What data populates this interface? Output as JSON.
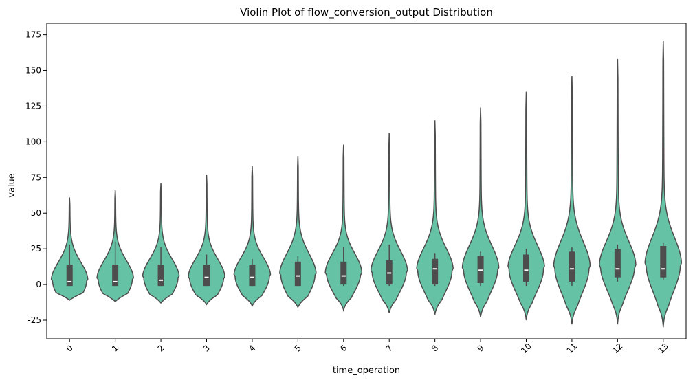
{
  "chart_data": {
    "type": "violin",
    "title": "Violin Plot of flow_conversion_output Distribution",
    "xlabel": "time_operation",
    "ylabel": "value",
    "ylim": [
      -38,
      183
    ],
    "yticks": [
      -25,
      0,
      25,
      50,
      75,
      100,
      125,
      150,
      175
    ],
    "categories": [
      "0",
      "1",
      "2",
      "3",
      "4",
      "5",
      "6",
      "7",
      "8",
      "9",
      "10",
      "11",
      "12",
      "13"
    ],
    "violin_color": "#66c2a5",
    "edge_color": "#4d4d4d",
    "grid": false,
    "series": [
      {
        "category": "0",
        "min": -11,
        "max": 61,
        "q1": -1,
        "median": 2,
        "q3": 14,
        "whisker_low": -1,
        "whisker_high": 28,
        "mode": 3
      },
      {
        "category": "1",
        "min": -12,
        "max": 66,
        "q1": -1,
        "median": 2,
        "q3": 14,
        "whisker_low": -1,
        "whisker_high": 30,
        "mode": 4
      },
      {
        "category": "2",
        "min": -13,
        "max": 71,
        "q1": -1,
        "median": 3,
        "q3": 14,
        "whisker_low": -1,
        "whisker_high": 26,
        "mode": 5
      },
      {
        "category": "3",
        "min": -14,
        "max": 77,
        "q1": -1,
        "median": 5,
        "q3": 14,
        "whisker_low": -1,
        "whisker_high": 21,
        "mode": 5
      },
      {
        "category": "4",
        "min": -15,
        "max": 83,
        "q1": -1,
        "median": 5,
        "q3": 14,
        "whisker_low": -1,
        "whisker_high": 18,
        "mode": 6
      },
      {
        "category": "5",
        "min": -16,
        "max": 90,
        "q1": -1,
        "median": 6,
        "q3": 16,
        "whisker_low": -1,
        "whisker_high": 20,
        "mode": 7
      },
      {
        "category": "6",
        "min": -18,
        "max": 98,
        "q1": 0,
        "median": 6,
        "q3": 16,
        "whisker_low": -1,
        "whisker_high": 26,
        "mode": 8
      },
      {
        "category": "7",
        "min": -20,
        "max": 106,
        "q1": 0,
        "median": 8,
        "q3": 17,
        "whisker_low": -1,
        "whisker_high": 28,
        "mode": 9
      },
      {
        "category": "8",
        "min": -21,
        "max": 115,
        "q1": 0,
        "median": 11,
        "q3": 18,
        "whisker_low": -1,
        "whisker_high": 22,
        "mode": 10
      },
      {
        "category": "9",
        "min": -23,
        "max": 124,
        "q1": 1,
        "median": 10,
        "q3": 20,
        "whisker_low": -1,
        "whisker_high": 23,
        "mode": 11
      },
      {
        "category": "10",
        "min": -25,
        "max": 135,
        "q1": 2,
        "median": 10,
        "q3": 21,
        "whisker_low": -1,
        "whisker_high": 25,
        "mode": 11
      },
      {
        "category": "11",
        "min": -28,
        "max": 146,
        "q1": 2,
        "median": 11,
        "q3": 23,
        "whisker_low": -1,
        "whisker_high": 26,
        "mode": 12
      },
      {
        "category": "12",
        "min": -28,
        "max": 158,
        "q1": 5,
        "median": 11,
        "q3": 25,
        "whisker_low": 2,
        "whisker_high": 28,
        "mode": 13
      },
      {
        "category": "13",
        "min": -30,
        "max": 171,
        "q1": 5,
        "median": 11,
        "q3": 27,
        "whisker_low": 3,
        "whisker_high": 29,
        "mode": 14
      }
    ]
  }
}
